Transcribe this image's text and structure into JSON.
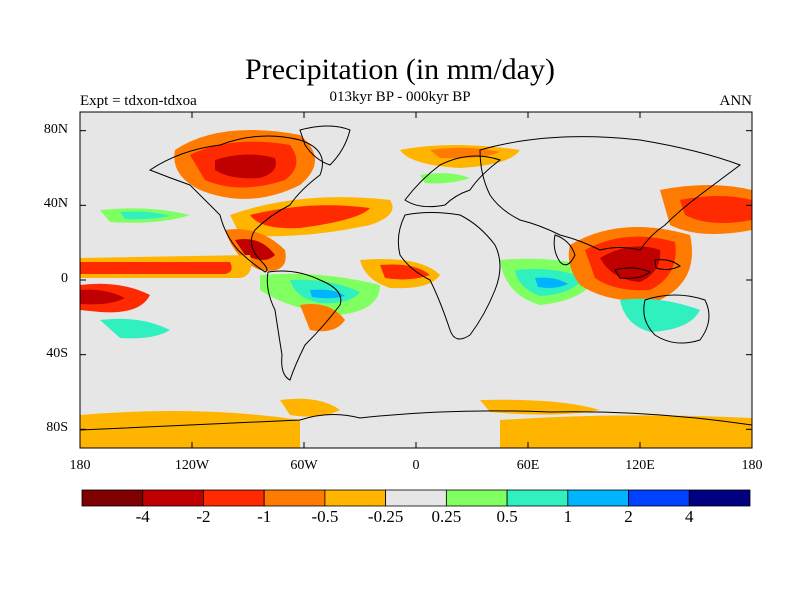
{
  "title": "Precipitation (in mm/day)",
  "subtitle": "013kyr BP - 000kyr BP",
  "left_label": "Expt = tdxon-tdxoa",
  "right_label": "ANN",
  "y_labels": [
    "80N",
    "40N",
    "0",
    "40S",
    "80S"
  ],
  "y_label_lats": [
    80,
    40,
    0,
    -40,
    -80
  ],
  "x_labels": [
    "180",
    "120W",
    "60W",
    "0",
    "60E",
    "120E",
    "180"
  ],
  "x_label_lons": [
    -180,
    -120,
    -60,
    0,
    60,
    120,
    180
  ],
  "colorbar": {
    "colors": [
      "#7f0000",
      "#c00000",
      "#ff2a00",
      "#ff7a00",
      "#ffb400",
      "#e6e6e6",
      "#80ff60",
      "#30f0c0",
      "#00b4ff",
      "#0040ff",
      "#000080"
    ],
    "labels": [
      "-4",
      "-2",
      "-1",
      "-0.5",
      "-0.25",
      "0.25",
      "0.5",
      "1",
      "2",
      "4"
    ]
  }
}
